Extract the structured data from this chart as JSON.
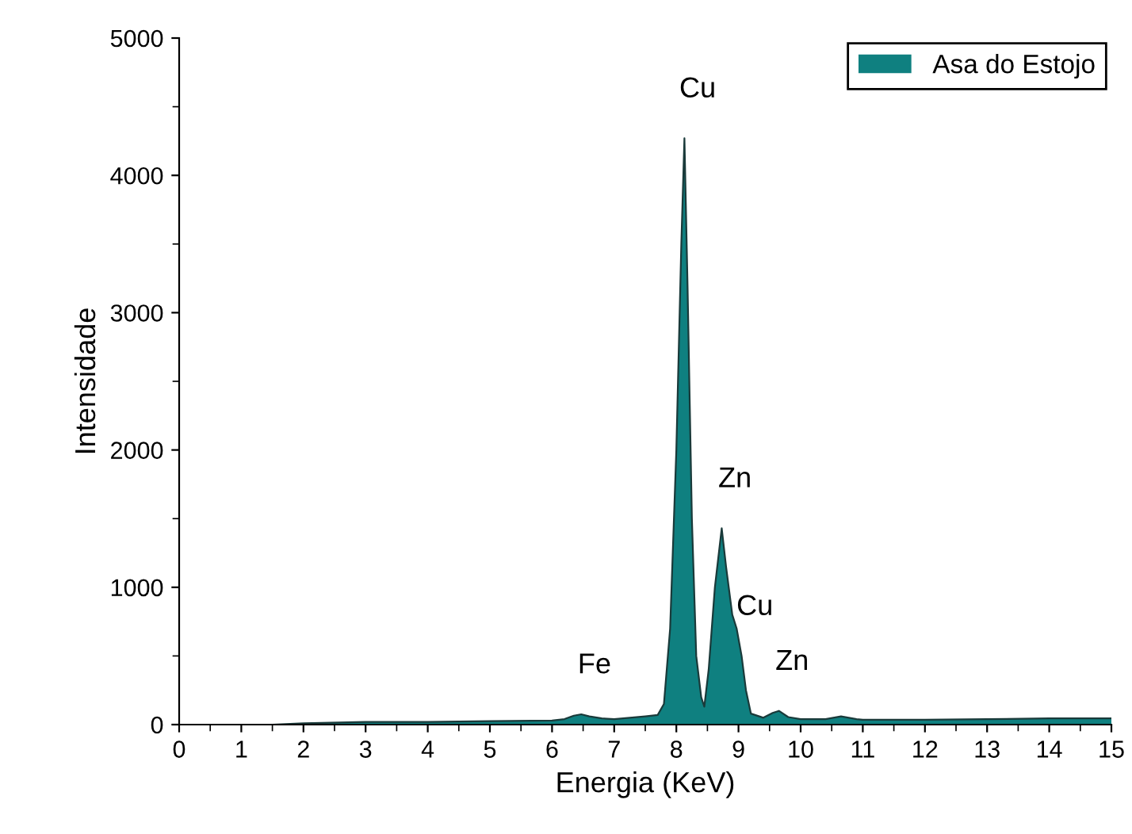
{
  "chart_data": {
    "type": "area",
    "xlabel": "Energia (KeV)",
    "ylabel": "Intensidade",
    "xlim": [
      0,
      15
    ],
    "xticks": [
      0,
      1,
      2,
      3,
      4,
      5,
      6,
      7,
      8,
      9,
      10,
      11,
      12,
      13,
      14,
      15
    ],
    "ylim": [
      0,
      5000
    ],
    "yticks": [
      0,
      1000,
      2000,
      3000,
      4000,
      5000
    ],
    "grid": false,
    "legend": "top right",
    "series": [
      {
        "name": "Asa do Estojo",
        "color": "#0f8080",
        "x": [
          0,
          1,
          1.5,
          2,
          3,
          4,
          5,
          6,
          6.2,
          6.35,
          6.47,
          6.6,
          6.8,
          7,
          7.5,
          7.7,
          7.8,
          7.9,
          8.0,
          8.08,
          8.13,
          8.18,
          8.25,
          8.32,
          8.4,
          8.45,
          8.52,
          8.62,
          8.73,
          8.8,
          8.9,
          8.97,
          9.05,
          9.12,
          9.2,
          9.4,
          9.55,
          9.65,
          9.8,
          10,
          10.4,
          10.65,
          10.9,
          11,
          12,
          13,
          14,
          15
        ],
        "values": [
          0,
          0,
          0,
          10,
          20,
          20,
          25,
          30,
          40,
          65,
          75,
          60,
          45,
          40,
          60,
          70,
          150,
          700,
          2000,
          3500,
          4270,
          3200,
          1500,
          500,
          200,
          130,
          400,
          1000,
          1430,
          1150,
          800,
          700,
          500,
          250,
          80,
          50,
          85,
          100,
          55,
          40,
          40,
          60,
          40,
          35,
          35,
          40,
          45,
          45
        ]
      }
    ],
    "annotations": [
      {
        "text": "Fe",
        "x": 6.47,
        "y": 75
      },
      {
        "text": "Cu",
        "x": 8.13,
        "y": 4270
      },
      {
        "text": "Zn",
        "x": 8.73,
        "y": 1430
      },
      {
        "text": "Cu",
        "x": 9.05,
        "y": 500
      },
      {
        "text": "Zn",
        "x": 9.65,
        "y": 100
      }
    ]
  }
}
